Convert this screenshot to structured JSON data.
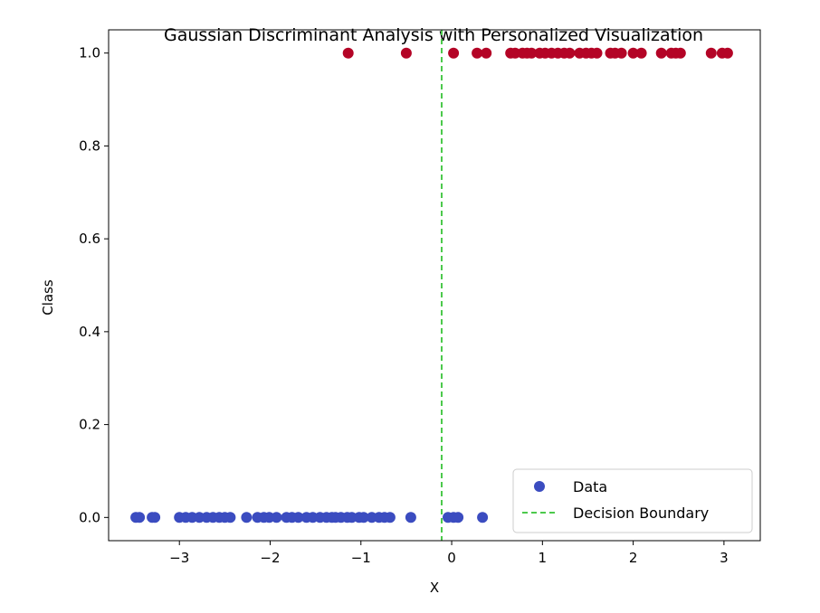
{
  "chart_data": {
    "type": "scatter",
    "title": "Gaussian Discriminant Analysis with Personalized Visualization",
    "xlabel": "X",
    "ylabel": "Class",
    "xlim": [
      -3.78,
      3.4
    ],
    "ylim": [
      -0.05,
      1.05
    ],
    "x_ticks": [
      -3,
      -2,
      -1,
      0,
      1,
      2,
      3
    ],
    "x_tick_labels": [
      "−3",
      "−2",
      "−1",
      "0",
      "1",
      "2",
      "3"
    ],
    "y_ticks": [
      0.0,
      0.2,
      0.4,
      0.6,
      0.8,
      1.0
    ],
    "y_tick_labels": [
      "0.0",
      "0.2",
      "0.4",
      "0.6",
      "0.8",
      "1.0"
    ],
    "grid": false,
    "legend_position": "lower-right",
    "decision_boundary": {
      "x": -0.11,
      "label": "Decision Boundary",
      "color": "#4cc94c",
      "style": "dashed"
    },
    "series": [
      {
        "name": "Data",
        "class": 0,
        "color": "#3b4cc0",
        "x": [
          -3.48,
          -3.44,
          -3.3,
          -3.27,
          -3.0,
          -2.93,
          -2.86,
          -2.78,
          -2.7,
          -2.63,
          -2.56,
          -2.5,
          -2.44,
          -2.26,
          -2.14,
          -2.07,
          -2.01,
          -1.93,
          -1.82,
          -1.76,
          -1.69,
          -1.6,
          -1.53,
          -1.45,
          -1.38,
          -1.32,
          -1.28,
          -1.22,
          -1.15,
          -1.1,
          -1.02,
          -0.97,
          -0.88,
          -0.8,
          -0.74,
          -0.68,
          -0.45,
          -0.04,
          0.02,
          0.07,
          0.34
        ],
        "y": [
          0,
          0,
          0,
          0,
          0,
          0,
          0,
          0,
          0,
          0,
          0,
          0,
          0,
          0,
          0,
          0,
          0,
          0,
          0,
          0,
          0,
          0,
          0,
          0,
          0,
          0,
          0,
          0,
          0,
          0,
          0,
          0,
          0,
          0,
          0,
          0,
          0,
          0,
          0,
          0,
          0
        ]
      },
      {
        "class": 1,
        "color": "#b40426",
        "x": [
          -1.14,
          -0.5,
          0.02,
          0.28,
          0.38,
          0.65,
          0.7,
          0.78,
          0.83,
          0.88,
          0.97,
          1.03,
          1.1,
          1.17,
          1.24,
          1.3,
          1.41,
          1.48,
          1.54,
          1.6,
          1.75,
          1.8,
          1.87,
          2.0,
          2.09,
          2.31,
          2.42,
          2.47,
          2.52,
          2.86,
          2.98,
          3.04
        ],
        "y": [
          1,
          1,
          1,
          1,
          1,
          1,
          1,
          1,
          1,
          1,
          1,
          1,
          1,
          1,
          1,
          1,
          1,
          1,
          1,
          1,
          1,
          1,
          1,
          1,
          1,
          1,
          1,
          1,
          1,
          1,
          1,
          1
        ]
      }
    ]
  }
}
